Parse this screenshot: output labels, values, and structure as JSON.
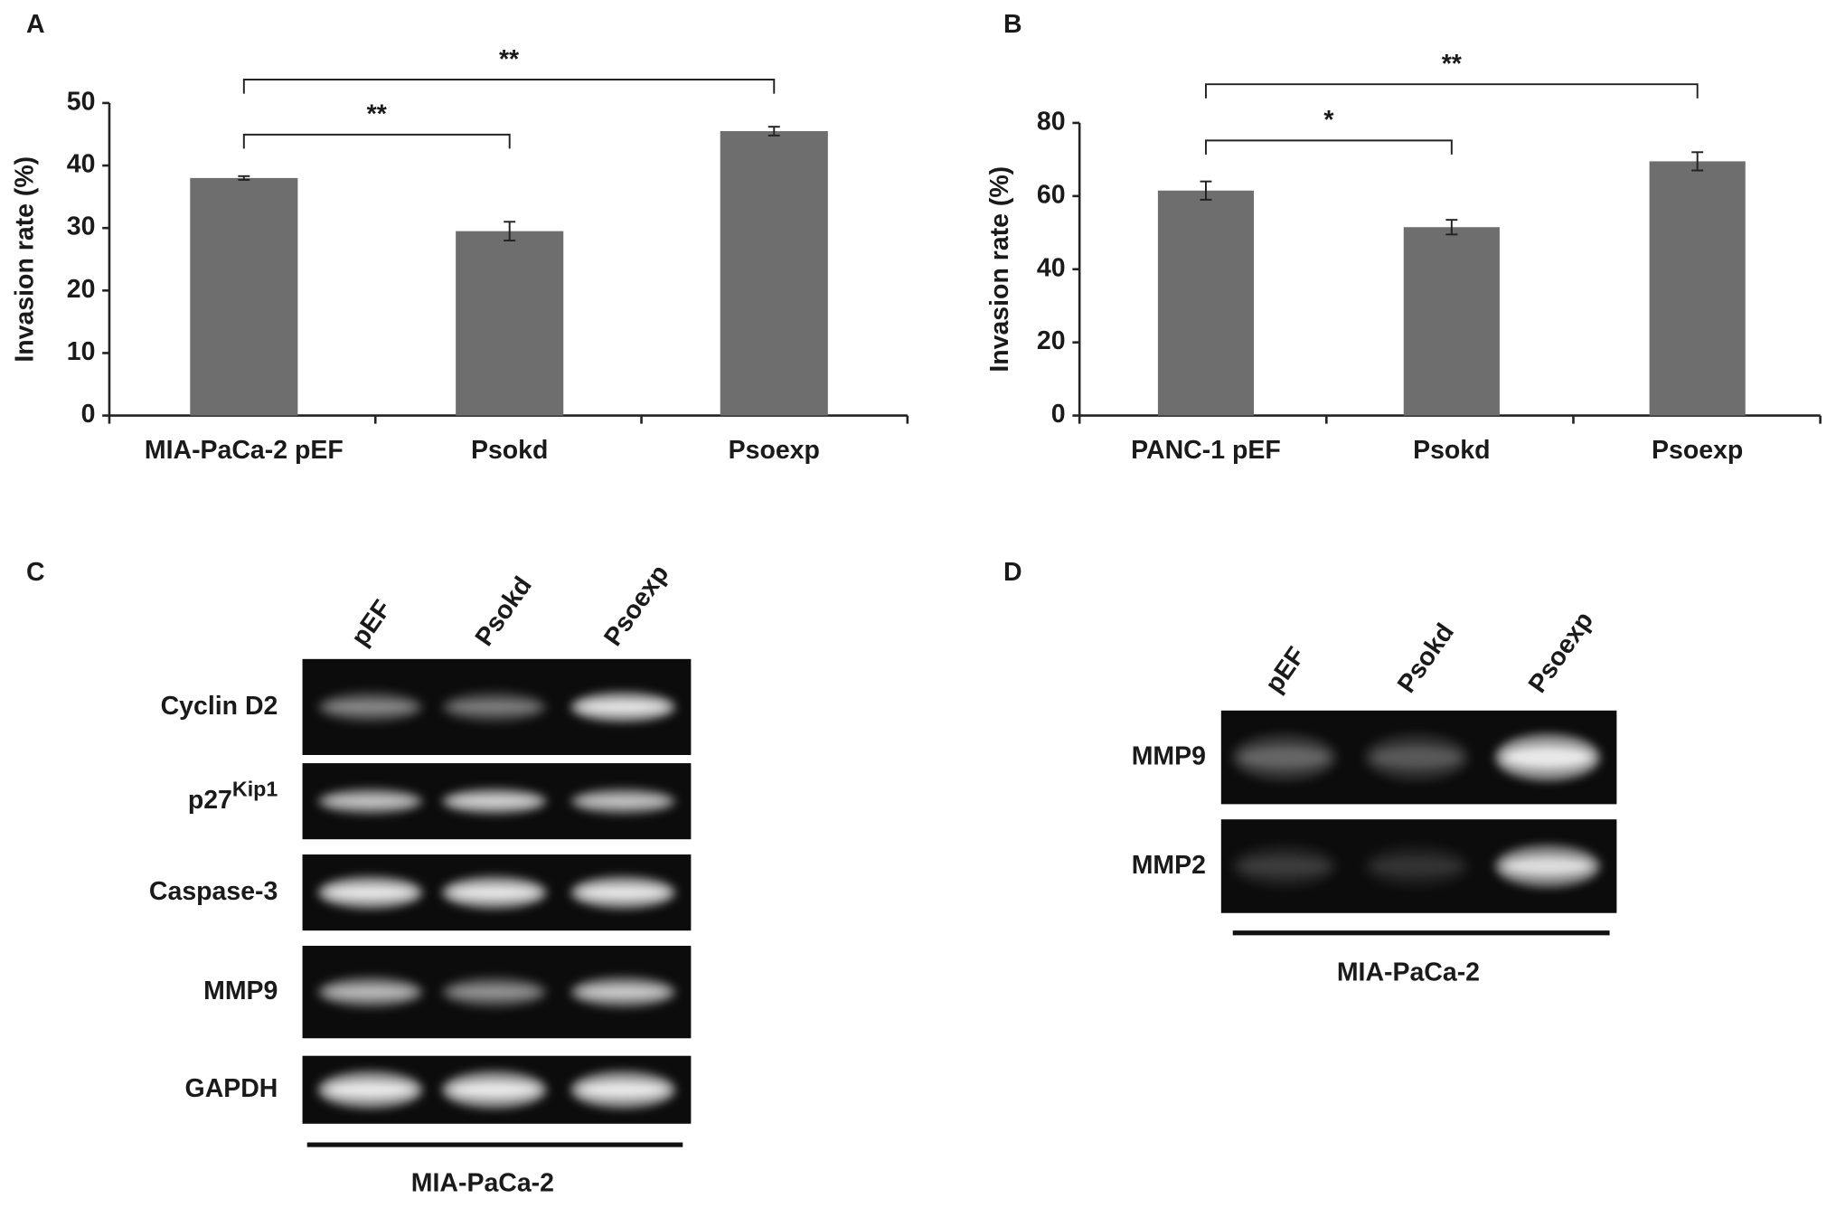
{
  "panels": [
    "A",
    "B",
    "C",
    "D"
  ],
  "chart_data": [
    {
      "type": "bar",
      "ylabel": "Invasion rate (%)",
      "categories": [
        "MIA-PaCa-2 pEF",
        "Psokd",
        "Psoexp"
      ],
      "values": [
        38,
        29.5,
        45.5
      ],
      "errors": [
        0.3,
        1.5,
        0.7
      ],
      "color": "#6e6e6e",
      "ylim": [
        0,
        50
      ],
      "yticks": [
        0,
        10,
        20,
        30,
        40,
        50
      ],
      "annotations": [
        "**",
        "**"
      ]
    },
    {
      "type": "bar",
      "ylabel": "Invasion rate (%)",
      "categories": [
        "PANC-1 pEF",
        "Psokd",
        "Psoexp"
      ],
      "values": [
        61.5,
        51.5,
        69.5
      ],
      "errors": [
        2.5,
        2,
        2.5
      ],
      "color": "#6e6e6e",
      "ylim": [
        0,
        80
      ],
      "yticks": [
        0,
        20,
        40,
        60,
        80
      ],
      "annotations": [
        "*",
        "**"
      ]
    }
  ],
  "gels": [
    {
      "lanes": [
        "pEF",
        "Psokd",
        "Psoexp"
      ],
      "rows": [
        {
          "text": "Cyclin D2"
        },
        {
          "text": "p27",
          "sup": "Kip1"
        },
        {
          "text": "Caspase-3"
        },
        {
          "text": "MMP9"
        },
        {
          "text": "GAPDH"
        }
      ],
      "cell_line": "MIA-PaCa-2"
    },
    {
      "lanes": [
        "pEF",
        "Psokd",
        "Psoexp"
      ],
      "rows": [
        {
          "text": "MMP9"
        },
        {
          "text": "MMP2"
        }
      ],
      "cell_line": "MIA-PaCa-2"
    }
  ]
}
